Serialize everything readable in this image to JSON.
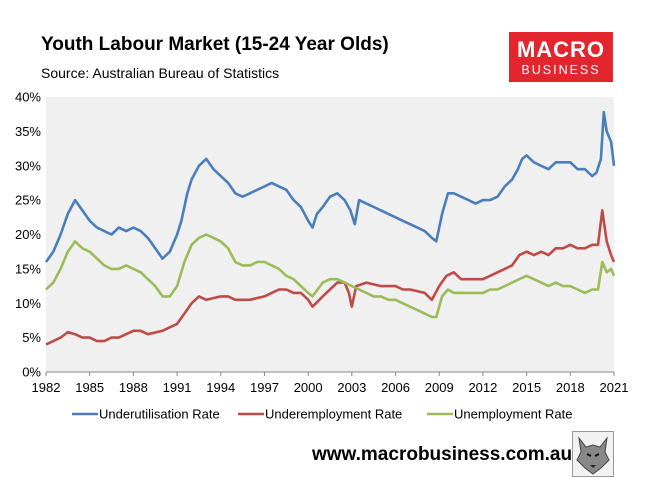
{
  "header": {
    "title": "Youth Labour Market (15-24 Year Olds)",
    "source": "Source: Australian Bureau of Statistics"
  },
  "logo": {
    "top": "MACRO",
    "bottom": "BUSINESS",
    "color": "#e3262e"
  },
  "footer": {
    "website": "www.macrobusiness.com.au",
    "mascot_icon": "wolf-icon"
  },
  "chart_data": {
    "type": "line",
    "title": "Youth Labour Market (15-24 Year Olds)",
    "xlabel": "",
    "ylabel": "",
    "x_ticks": [
      "1982",
      "1985",
      "1988",
      "1991",
      "1994",
      "1997",
      "2000",
      "2003",
      "2006",
      "2009",
      "2012",
      "2015",
      "2018",
      "2021"
    ],
    "y_ticks": [
      "0%",
      "5%",
      "10%",
      "15%",
      "20%",
      "25%",
      "30%",
      "35%",
      "40%"
    ],
    "xlim": [
      1982,
      2021
    ],
    "ylim": [
      0,
      40
    ],
    "grid": false,
    "background": "#f0f0f0",
    "legend_position": "bottom",
    "series": [
      {
        "name": "Underutilisation Rate",
        "color": "#4a7ebb",
        "points": [
          [
            1982,
            16
          ],
          [
            1982.5,
            17.5
          ],
          [
            1983,
            20
          ],
          [
            1983.5,
            23
          ],
          [
            1984,
            25
          ],
          [
            1984.5,
            23.5
          ],
          [
            1985,
            22
          ],
          [
            1985.5,
            21
          ],
          [
            1986,
            20.5
          ],
          [
            1986.5,
            20
          ],
          [
            1987,
            21
          ],
          [
            1987.5,
            20.5
          ],
          [
            1988,
            21
          ],
          [
            1988.5,
            20.5
          ],
          [
            1989,
            19.5
          ],
          [
            1989.5,
            18
          ],
          [
            1990,
            16.5
          ],
          [
            1990.5,
            17.5
          ],
          [
            1991,
            20
          ],
          [
            1991.3,
            22
          ],
          [
            1991.7,
            26
          ],
          [
            1992,
            28
          ],
          [
            1992.5,
            30
          ],
          [
            1993,
            31
          ],
          [
            1993.5,
            29.5
          ],
          [
            1994,
            28.5
          ],
          [
            1994.5,
            27.5
          ],
          [
            1995,
            26
          ],
          [
            1995.5,
            25.5
          ],
          [
            1996,
            26
          ],
          [
            1996.5,
            26.5
          ],
          [
            1997,
            27
          ],
          [
            1997.5,
            27.5
          ],
          [
            1998,
            27
          ],
          [
            1998.5,
            26.5
          ],
          [
            1999,
            25
          ],
          [
            1999.5,
            24
          ],
          [
            2000,
            22
          ],
          [
            2000.3,
            21
          ],
          [
            2000.6,
            23
          ],
          [
            2001,
            24
          ],
          [
            2001.5,
            25.5
          ],
          [
            2002,
            26
          ],
          [
            2002.5,
            25
          ],
          [
            2002.9,
            23.5
          ],
          [
            2003.2,
            21.5
          ],
          [
            2003.5,
            25
          ],
          [
            2004,
            24.5
          ],
          [
            2004.5,
            24
          ],
          [
            2005,
            23.5
          ],
          [
            2005.5,
            23
          ],
          [
            2006,
            22.5
          ],
          [
            2006.5,
            22
          ],
          [
            2007,
            21.5
          ],
          [
            2007.5,
            21
          ],
          [
            2008,
            20.5
          ],
          [
            2008.5,
            19.5
          ],
          [
            2008.8,
            19
          ],
          [
            2009.2,
            23
          ],
          [
            2009.6,
            26
          ],
          [
            2010,
            26
          ],
          [
            2010.5,
            25.5
          ],
          [
            2011,
            25
          ],
          [
            2011.5,
            24.5
          ],
          [
            2012,
            25
          ],
          [
            2012.5,
            25
          ],
          [
            2013,
            25.5
          ],
          [
            2013.5,
            27
          ],
          [
            2014,
            28
          ],
          [
            2014.4,
            29.5
          ],
          [
            2014.7,
            31
          ],
          [
            2015,
            31.5
          ],
          [
            2015.5,
            30.5
          ],
          [
            2016,
            30
          ],
          [
            2016.5,
            29.5
          ],
          [
            2017,
            30.5
          ],
          [
            2017.5,
            30.5
          ],
          [
            2018,
            30.5
          ],
          [
            2018.5,
            29.5
          ],
          [
            2019,
            29.5
          ],
          [
            2019.5,
            28.5
          ],
          [
            2019.8,
            29
          ],
          [
            2020.1,
            31
          ],
          [
            2020.3,
            37.8
          ],
          [
            2020.5,
            35
          ],
          [
            2020.8,
            33.5
          ],
          [
            2021,
            30
          ]
        ]
      },
      {
        "name": "Underemployment Rate",
        "color": "#be4b48",
        "points": [
          [
            1982,
            4
          ],
          [
            1982.5,
            4.5
          ],
          [
            1983,
            5
          ],
          [
            1983.5,
            5.8
          ],
          [
            1984,
            5.5
          ],
          [
            1984.5,
            5
          ],
          [
            1985,
            5
          ],
          [
            1985.5,
            4.5
          ],
          [
            1986,
            4.5
          ],
          [
            1986.5,
            5
          ],
          [
            1987,
            5
          ],
          [
            1987.5,
            5.5
          ],
          [
            1988,
            6
          ],
          [
            1988.5,
            6
          ],
          [
            1989,
            5.5
          ],
          [
            1990,
            6
          ],
          [
            1990.5,
            6.5
          ],
          [
            1991,
            7
          ],
          [
            1991.5,
            8.5
          ],
          [
            1992,
            10
          ],
          [
            1992.5,
            11
          ],
          [
            1993,
            10.5
          ],
          [
            1994,
            11
          ],
          [
            1994.5,
            11
          ],
          [
            1995,
            10.5
          ],
          [
            1996,
            10.5
          ],
          [
            1997,
            11
          ],
          [
            1997.5,
            11.5
          ],
          [
            1998,
            12
          ],
          [
            1998.5,
            12
          ],
          [
            1999,
            11.5
          ],
          [
            1999.5,
            11.5
          ],
          [
            2000,
            10.5
          ],
          [
            2000.3,
            9.5
          ],
          [
            2001,
            11
          ],
          [
            2001.5,
            12
          ],
          [
            2002,
            13
          ],
          [
            2002.5,
            13
          ],
          [
            2002.8,
            11.5
          ],
          [
            2003,
            9.5
          ],
          [
            2003.3,
            12.5
          ],
          [
            2004,
            13
          ],
          [
            2005,
            12.5
          ],
          [
            2006,
            12.5
          ],
          [
            2006.5,
            12
          ],
          [
            2007,
            12
          ],
          [
            2008,
            11.5
          ],
          [
            2008.5,
            10.5
          ],
          [
            2009,
            12.5
          ],
          [
            2009.5,
            14
          ],
          [
            2010,
            14.5
          ],
          [
            2010.5,
            13.5
          ],
          [
            2011,
            13.5
          ],
          [
            2012,
            13.5
          ],
          [
            2012.5,
            14
          ],
          [
            2013,
            14.5
          ],
          [
            2013.5,
            15
          ],
          [
            2014,
            15.5
          ],
          [
            2014.5,
            17
          ],
          [
            2015,
            17.5
          ],
          [
            2015.5,
            17
          ],
          [
            2016,
            17.5
          ],
          [
            2016.5,
            17
          ],
          [
            2017,
            18
          ],
          [
            2017.5,
            18
          ],
          [
            2018,
            18.5
          ],
          [
            2018.5,
            18
          ],
          [
            2019,
            18
          ],
          [
            2019.5,
            18.5
          ],
          [
            2019.9,
            18.5
          ],
          [
            2020.2,
            23.5
          ],
          [
            2020.5,
            19
          ],
          [
            2020.8,
            17
          ],
          [
            2021,
            16
          ]
        ]
      },
      {
        "name": "Unemployment Rate",
        "color": "#9bbb59",
        "points": [
          [
            1982,
            12
          ],
          [
            1982.5,
            13
          ],
          [
            1983,
            15
          ],
          [
            1983.5,
            17.5
          ],
          [
            1984,
            19
          ],
          [
            1984.5,
            18
          ],
          [
            1985,
            17.5
          ],
          [
            1985.5,
            16.5
          ],
          [
            1986,
            15.5
          ],
          [
            1986.5,
            15
          ],
          [
            1987,
            15
          ],
          [
            1987.5,
            15.5
          ],
          [
            1988,
            15
          ],
          [
            1988.5,
            14.5
          ],
          [
            1989,
            13.5
          ],
          [
            1989.5,
            12.5
          ],
          [
            1990,
            11
          ],
          [
            1990.5,
            11
          ],
          [
            1991,
            12.5
          ],
          [
            1991.5,
            16
          ],
          [
            1992,
            18.5
          ],
          [
            1992.5,
            19.5
          ],
          [
            1993,
            20
          ],
          [
            1993.5,
            19.5
          ],
          [
            1994,
            19
          ],
          [
            1994.5,
            18
          ],
          [
            1995,
            16
          ],
          [
            1995.5,
            15.5
          ],
          [
            1996,
            15.5
          ],
          [
            1996.5,
            16
          ],
          [
            1997,
            16
          ],
          [
            1997.5,
            15.5
          ],
          [
            1998,
            15
          ],
          [
            1998.5,
            14
          ],
          [
            1999,
            13.5
          ],
          [
            1999.5,
            12.5
          ],
          [
            2000,
            11.5
          ],
          [
            2000.3,
            11
          ],
          [
            2001,
            13
          ],
          [
            2001.5,
            13.5
          ],
          [
            2002,
            13.5
          ],
          [
            2002.5,
            13
          ],
          [
            2003,
            12.5
          ],
          [
            2003.5,
            12
          ],
          [
            2004,
            11.5
          ],
          [
            2004.5,
            11
          ],
          [
            2005,
            11
          ],
          [
            2005.5,
            10.5
          ],
          [
            2006,
            10.5
          ],
          [
            2006.5,
            10
          ],
          [
            2007,
            9.5
          ],
          [
            2007.5,
            9
          ],
          [
            2008,
            8.5
          ],
          [
            2008.5,
            8
          ],
          [
            2008.8,
            8
          ],
          [
            2009.2,
            11
          ],
          [
            2009.6,
            12
          ],
          [
            2010,
            11.5
          ],
          [
            2010.5,
            11.5
          ],
          [
            2011,
            11.5
          ],
          [
            2011.5,
            11.5
          ],
          [
            2012,
            11.5
          ],
          [
            2012.5,
            12
          ],
          [
            2013,
            12
          ],
          [
            2013.5,
            12.5
          ],
          [
            2014,
            13
          ],
          [
            2014.5,
            13.5
          ],
          [
            2015,
            14
          ],
          [
            2015.5,
            13.5
          ],
          [
            2016,
            13
          ],
          [
            2016.5,
            12.5
          ],
          [
            2017,
            13
          ],
          [
            2017.5,
            12.5
          ],
          [
            2018,
            12.5
          ],
          [
            2018.5,
            12
          ],
          [
            2019,
            11.5
          ],
          [
            2019.5,
            12
          ],
          [
            2019.9,
            12
          ],
          [
            2020.2,
            16
          ],
          [
            2020.5,
            14.5
          ],
          [
            2020.8,
            15
          ],
          [
            2021,
            14
          ]
        ]
      }
    ]
  }
}
